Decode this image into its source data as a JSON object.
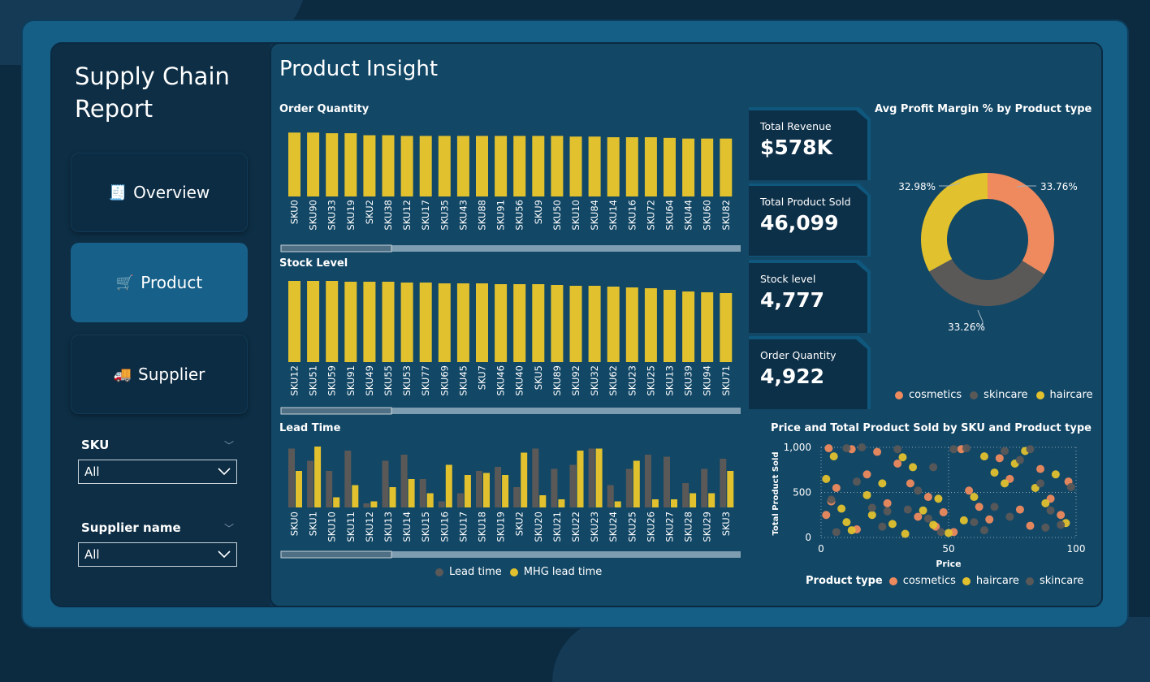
{
  "sidebar": {
    "title": "Supply Chain Report",
    "nav": [
      {
        "label": "Overview",
        "icon": "document-icon"
      },
      {
        "label": "Product",
        "icon": "cart-icon"
      },
      {
        "label": "Supplier",
        "icon": "truck-icon"
      }
    ],
    "filters": [
      {
        "label": "SKU",
        "value": "All"
      },
      {
        "label": "Supplier name",
        "value": "All"
      }
    ]
  },
  "page_title": "Product Insight",
  "kpis": [
    {
      "label": "Total Revenue",
      "value": "$578K"
    },
    {
      "label": "Total Product Sold",
      "value": "46,099"
    },
    {
      "label": "Stock level",
      "value": "4,777"
    },
    {
      "label": "Order Quantity",
      "value": "4,922"
    }
  ],
  "colors": {
    "yellow": "#e2c12e",
    "grey": "#5a5958",
    "orange": "#ee8a5e"
  },
  "chart_data": [
    {
      "type": "bar",
      "title": "Order Quantity",
      "categories": [
        "SKU0",
        "SKU90",
        "SKU33",
        "SKU19",
        "SKU2",
        "SKU38",
        "SKU12",
        "SKU17",
        "SKU35",
        "SKU43",
        "SKU88",
        "SKU91",
        "SKU56",
        "SKU9",
        "SKU50",
        "SKU10",
        "SKU84",
        "SKU14",
        "SKU16",
        "SKU72",
        "SKU64",
        "SKU44",
        "SKU60",
        "SKU82"
      ],
      "values": [
        96,
        96,
        95,
        95,
        92,
        92,
        91,
        91,
        91,
        91,
        91,
        91,
        91,
        91,
        91,
        90,
        90,
        89,
        89,
        89,
        88,
        87,
        87,
        87
      ],
      "ylim": [
        0,
        100
      ]
    },
    {
      "type": "bar",
      "title": "Stock Level",
      "categories": [
        "SKU12",
        "SKU51",
        "SKU59",
        "SKU91",
        "SKU49",
        "SKU55",
        "SKU53",
        "SKU77",
        "SKU69",
        "SKU45",
        "SKU7",
        "SKU46",
        "SKU40",
        "SKU5",
        "SKU89",
        "SKU92",
        "SKU32",
        "SKU62",
        "SKU23",
        "SKU25",
        "SKU13",
        "SKU39",
        "SKU94",
        "SKU71"
      ],
      "values": [
        100,
        100,
        100,
        99,
        99,
        99,
        98,
        98,
        97,
        97,
        97,
        96,
        96,
        96,
        95,
        94,
        94,
        93,
        92,
        91,
        89,
        87,
        86,
        85
      ],
      "ylim": [
        0,
        100
      ]
    },
    {
      "type": "bar",
      "title": "Lead Time",
      "categories": [
        "SKU0",
        "SKU1",
        "SKU10",
        "SKU11",
        "SKU12",
        "SKU13",
        "SKU14",
        "SKU15",
        "SKU16",
        "SKU17",
        "SKU18",
        "SKU19",
        "SKU2",
        "SKU20",
        "SKU21",
        "SKU22",
        "SKU23",
        "SKU24",
        "SKU25",
        "SKU26",
        "SKU27",
        "SKU28",
        "SKU29",
        "SKU3"
      ],
      "series": [
        {
          "name": "Lead time",
          "values": [
            29,
            23,
            18,
            28,
            2,
            23,
            26,
            14,
            3,
            7,
            18,
            20,
            10,
            29,
            19,
            21,
            29,
            11,
            19,
            26,
            25,
            12,
            19,
            24
          ]
        },
        {
          "name": "MHG lead time",
          "values": [
            18,
            30,
            5,
            11,
            3,
            10,
            14,
            7,
            21,
            16,
            17,
            16,
            27,
            6,
            4,
            28,
            29,
            3,
            23,
            4,
            4,
            7,
            7,
            18
          ]
        }
      ],
      "ylim": [
        0,
        30
      ]
    },
    {
      "type": "pie",
      "title": "Avg Profit Margin % by Product type",
      "categories": [
        "cosmetics",
        "skincare",
        "haircare"
      ],
      "values": [
        33.76,
        33.26,
        32.98
      ],
      "labels": [
        "33.76%",
        "33.26%",
        "32.98%"
      ],
      "legend": "bottom"
    },
    {
      "type": "scatter",
      "title": "Price and Total Product Sold by SKU and Product type",
      "xlabel": "Price",
      "ylabel": "Total Product Sold",
      "xlim": [
        0,
        100
      ],
      "ylim": [
        0,
        1000
      ],
      "xticks": [
        "0",
        "50",
        "100"
      ],
      "yticks": [
        "0",
        "500",
        "1,000"
      ],
      "legend_title": "Product type",
      "series": [
        {
          "name": "cosmetics",
          "points": [
            [
              3,
              990
            ],
            [
              12,
              980
            ],
            [
              6,
              550
            ],
            [
              4,
              400
            ],
            [
              2,
              250
            ],
            [
              14,
              90
            ],
            [
              22,
              950
            ],
            [
              30,
              820
            ],
            [
              35,
              600
            ],
            [
              42,
              450
            ],
            [
              48,
              280
            ],
            [
              55,
              980
            ],
            [
              58,
              520
            ],
            [
              62,
              340
            ],
            [
              66,
              200
            ],
            [
              70,
              880
            ],
            [
              74,
              650
            ],
            [
              78,
              310
            ],
            [
              82,
              130
            ],
            [
              86,
              760
            ],
            [
              90,
              430
            ],
            [
              94,
              250
            ],
            [
              97,
              620
            ],
            [
              45,
              120
            ],
            [
              52,
              60
            ],
            [
              38,
              230
            ],
            [
              26,
              380
            ],
            [
              18,
              700
            ]
          ]
        },
        {
          "name": "haircare",
          "points": [
            [
              5,
              900
            ],
            [
              2,
              650
            ],
            [
              8,
              320
            ],
            [
              12,
              80
            ],
            [
              18,
              470
            ],
            [
              24,
              600
            ],
            [
              28,
              150
            ],
            [
              32,
              890
            ],
            [
              36,
              780
            ],
            [
              40,
              300
            ],
            [
              44,
              140
            ],
            [
              50,
              50
            ],
            [
              56,
              190
            ],
            [
              60,
              450
            ],
            [
              64,
              900
            ],
            [
              68,
              720
            ],
            [
              72,
              600
            ],
            [
              76,
              820
            ],
            [
              80,
              960
            ],
            [
              84,
              550
            ],
            [
              88,
              380
            ],
            [
              92,
              700
            ],
            [
              96,
              160
            ],
            [
              46,
              430
            ],
            [
              20,
              250
            ],
            [
              10,
              170
            ],
            [
              33,
              40
            ]
          ]
        },
        {
          "name": "skincare",
          "points": [
            [
              4,
              420
            ],
            [
              6,
              60
            ],
            [
              10,
              990
            ],
            [
              16,
              1000
            ],
            [
              20,
              330
            ],
            [
              24,
              120
            ],
            [
              30,
              980
            ],
            [
              34,
              310
            ],
            [
              38,
              520
            ],
            [
              42,
              210
            ],
            [
              47,
              60
            ],
            [
              52,
              980
            ],
            [
              57,
              990
            ],
            [
              60,
              170
            ],
            [
              64,
              80
            ],
            [
              68,
              340
            ],
            [
              72,
              960
            ],
            [
              78,
              860
            ],
            [
              82,
              980
            ],
            [
              86,
              600
            ],
            [
              90,
              300
            ],
            [
              94,
              140
            ],
            [
              98,
              560
            ],
            [
              14,
              620
            ],
            [
              26,
              290
            ],
            [
              44,
              780
            ],
            [
              74,
              230
            ],
            [
              88,
              110
            ]
          ]
        }
      ]
    }
  ]
}
